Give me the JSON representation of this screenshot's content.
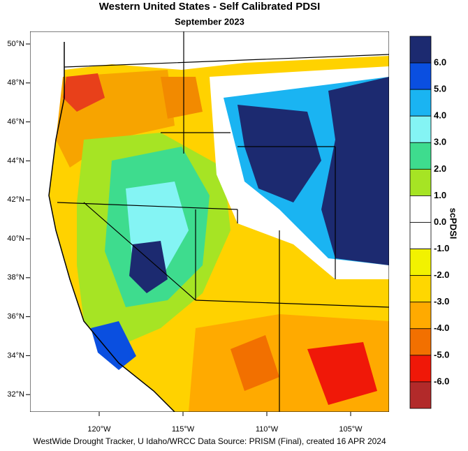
{
  "header": {
    "title": "Western United States - Self Calibrated PDSI",
    "subtitle": "September 2023"
  },
  "map": {
    "lat_labels": [
      "50°N",
      "48°N",
      "46°N",
      "44°N",
      "42°N",
      "40°N",
      "38°N",
      "36°N",
      "34°N",
      "32°N"
    ],
    "lon_labels": [
      "120°W",
      "115°W",
      "110°W",
      "105°W"
    ]
  },
  "colorbar": {
    "title": "scPDSI",
    "labels": [
      "6.0",
      "5.0",
      "4.0",
      "3.0",
      "2.0",
      "1.0",
      "0.0",
      "-1.0",
      "-2.0",
      "-3.0",
      "-4.0",
      "-5.0",
      "-6.0"
    ],
    "colors": [
      "#1c2a70",
      "#0a4fe0",
      "#1ab4f2",
      "#84f4f4",
      "#3edc8e",
      "#a6e424",
      "#ffffff",
      "#ffffff",
      "#f2f200",
      "#ffd700",
      "#ffaa00",
      "#f27000",
      "#f01808",
      "#b22a2a"
    ]
  },
  "footer": {
    "credit": "WestWide Drought Tracker, U Idaho/WRCC Data Source: PRISM (Final), created 16 APR 2024"
  }
}
